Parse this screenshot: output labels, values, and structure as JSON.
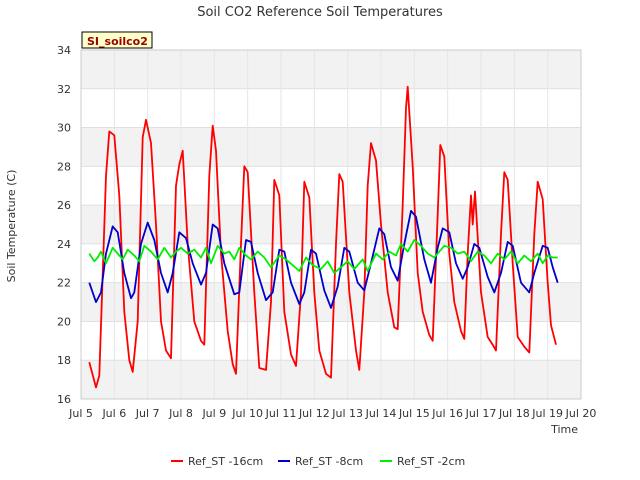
{
  "chart_data": {
    "type": "line",
    "title": "Soil CO2 Reference Soil Temperatures",
    "xlabel": "Time",
    "ylabel": "Soil Temperature (C)",
    "badge": "SI_soilco2",
    "xlim": [
      5,
      20
    ],
    "ylim": [
      16,
      34
    ],
    "x_ticks": [
      5,
      6,
      7,
      8,
      9,
      10,
      11,
      12,
      13,
      14,
      15,
      16,
      17,
      18,
      19,
      20
    ],
    "x_tick_labels": [
      "Jul 5",
      "Jul 6",
      "Jul 7",
      "Jul 8",
      "Jul 9",
      "Jul 10",
      "Jul 11",
      "Jul 12",
      "Jul 13",
      "Jul 14",
      "Jul 15",
      "Jul 16",
      "Jul 17",
      "Jul 18",
      "Jul 19",
      "Jul 20"
    ],
    "y_ticks": [
      16,
      18,
      20,
      22,
      24,
      26,
      28,
      30,
      32,
      34
    ],
    "y_tick_labels": [
      "16",
      "18",
      "20",
      "22",
      "24",
      "26",
      "28",
      "30",
      "32",
      "34"
    ],
    "grid": true,
    "legend_position": "bottom",
    "series": [
      {
        "name": "Ref_ST -16cm",
        "color": "#ff0000",
        "points": [
          [
            5.25,
            17.9
          ],
          [
            5.45,
            16.6
          ],
          [
            5.55,
            17.2
          ],
          [
            5.75,
            27.5
          ],
          [
            5.85,
            29.8
          ],
          [
            6.0,
            29.6
          ],
          [
            6.15,
            26.5
          ],
          [
            6.3,
            20.5
          ],
          [
            6.45,
            18.0
          ],
          [
            6.55,
            17.4
          ],
          [
            6.7,
            20.0
          ],
          [
            6.85,
            29.5
          ],
          [
            6.95,
            30.4
          ],
          [
            7.1,
            29.2
          ],
          [
            7.25,
            25.0
          ],
          [
            7.4,
            20.0
          ],
          [
            7.55,
            18.5
          ],
          [
            7.7,
            18.1
          ],
          [
            7.85,
            27.0
          ],
          [
            7.95,
            28.1
          ],
          [
            8.05,
            28.8
          ],
          [
            8.2,
            24.0
          ],
          [
            8.4,
            20.0
          ],
          [
            8.6,
            19.0
          ],
          [
            8.7,
            18.8
          ],
          [
            8.85,
            27.5
          ],
          [
            8.95,
            30.1
          ],
          [
            9.05,
            28.8
          ],
          [
            9.2,
            23.5
          ],
          [
            9.4,
            19.5
          ],
          [
            9.55,
            17.8
          ],
          [
            9.65,
            17.3
          ],
          [
            9.8,
            24.0
          ],
          [
            9.9,
            28.0
          ],
          [
            10.0,
            27.7
          ],
          [
            10.2,
            21.5
          ],
          [
            10.35,
            17.6
          ],
          [
            10.55,
            17.5
          ],
          [
            10.7,
            21.0
          ],
          [
            10.8,
            27.3
          ],
          [
            10.95,
            26.5
          ],
          [
            11.1,
            20.5
          ],
          [
            11.3,
            18.3
          ],
          [
            11.45,
            17.7
          ],
          [
            11.6,
            21.5
          ],
          [
            11.7,
            27.2
          ],
          [
            11.85,
            26.4
          ],
          [
            12.0,
            21.5
          ],
          [
            12.15,
            18.5
          ],
          [
            12.35,
            17.3
          ],
          [
            12.5,
            17.1
          ],
          [
            12.65,
            24.0
          ],
          [
            12.75,
            27.6
          ],
          [
            12.85,
            27.2
          ],
          [
            13.05,
            21.5
          ],
          [
            13.25,
            18.5
          ],
          [
            13.35,
            17.5
          ],
          [
            13.5,
            21.5
          ],
          [
            13.6,
            27.0
          ],
          [
            13.7,
            29.2
          ],
          [
            13.85,
            28.3
          ],
          [
            14.0,
            25.0
          ],
          [
            14.2,
            21.5
          ],
          [
            14.4,
            19.7
          ],
          [
            14.5,
            19.6
          ],
          [
            14.65,
            26.0
          ],
          [
            14.75,
            31.0
          ],
          [
            14.8,
            32.1
          ],
          [
            14.95,
            28.0
          ],
          [
            15.1,
            22.5
          ],
          [
            15.25,
            20.5
          ],
          [
            15.45,
            19.3
          ],
          [
            15.55,
            19.0
          ],
          [
            15.7,
            25.5
          ],
          [
            15.78,
            29.1
          ],
          [
            15.9,
            28.5
          ],
          [
            16.05,
            23.5
          ],
          [
            16.2,
            21.0
          ],
          [
            16.4,
            19.5
          ],
          [
            16.5,
            19.1
          ],
          [
            16.6,
            23.5
          ],
          [
            16.7,
            26.5
          ],
          [
            16.75,
            25.0
          ],
          [
            16.82,
            26.7
          ],
          [
            17.0,
            21.5
          ],
          [
            17.2,
            19.2
          ],
          [
            17.35,
            18.8
          ],
          [
            17.45,
            18.5
          ],
          [
            17.6,
            24.5
          ],
          [
            17.7,
            27.7
          ],
          [
            17.8,
            27.3
          ],
          [
            17.95,
            23.0
          ],
          [
            18.1,
            19.2
          ],
          [
            18.3,
            18.7
          ],
          [
            18.45,
            18.4
          ],
          [
            18.6,
            24.5
          ],
          [
            18.7,
            27.2
          ],
          [
            18.85,
            26.3
          ],
          [
            19.0,
            22.0
          ],
          [
            19.1,
            19.8
          ],
          [
            19.25,
            18.8
          ]
        ]
      },
      {
        "name": "Ref_ST -8cm",
        "color": "#0000cc",
        "points": [
          [
            5.25,
            22.0
          ],
          [
            5.45,
            21.0
          ],
          [
            5.6,
            21.5
          ],
          [
            5.75,
            23.5
          ],
          [
            5.95,
            24.9
          ],
          [
            6.1,
            24.6
          ],
          [
            6.3,
            22.5
          ],
          [
            6.5,
            21.2
          ],
          [
            6.6,
            21.5
          ],
          [
            6.8,
            24.0
          ],
          [
            7.0,
            25.1
          ],
          [
            7.2,
            24.2
          ],
          [
            7.4,
            22.5
          ],
          [
            7.6,
            21.5
          ],
          [
            7.75,
            22.5
          ],
          [
            7.95,
            24.6
          ],
          [
            8.15,
            24.3
          ],
          [
            8.35,
            23.0
          ],
          [
            8.6,
            21.9
          ],
          [
            8.75,
            22.5
          ],
          [
            8.95,
            25.0
          ],
          [
            9.1,
            24.8
          ],
          [
            9.3,
            23.0
          ],
          [
            9.6,
            21.4
          ],
          [
            9.75,
            21.5
          ],
          [
            9.95,
            24.2
          ],
          [
            10.1,
            24.1
          ],
          [
            10.3,
            22.5
          ],
          [
            10.55,
            21.1
          ],
          [
            10.75,
            21.5
          ],
          [
            10.95,
            23.7
          ],
          [
            11.1,
            23.6
          ],
          [
            11.3,
            22.0
          ],
          [
            11.55,
            20.9
          ],
          [
            11.7,
            21.5
          ],
          [
            11.9,
            23.7
          ],
          [
            12.05,
            23.5
          ],
          [
            12.3,
            21.6
          ],
          [
            12.5,
            20.7
          ],
          [
            12.7,
            21.8
          ],
          [
            12.9,
            23.8
          ],
          [
            13.05,
            23.6
          ],
          [
            13.3,
            22.0
          ],
          [
            13.5,
            21.6
          ],
          [
            13.7,
            23.0
          ],
          [
            13.95,
            24.8
          ],
          [
            14.1,
            24.5
          ],
          [
            14.3,
            22.8
          ],
          [
            14.5,
            22.1
          ],
          [
            14.7,
            24.0
          ],
          [
            14.9,
            25.7
          ],
          [
            15.05,
            25.4
          ],
          [
            15.3,
            23.2
          ],
          [
            15.5,
            22.0
          ],
          [
            15.7,
            23.8
          ],
          [
            15.85,
            24.8
          ],
          [
            16.05,
            24.6
          ],
          [
            16.25,
            23.0
          ],
          [
            16.45,
            22.2
          ],
          [
            16.6,
            22.8
          ],
          [
            16.8,
            24.0
          ],
          [
            16.95,
            23.8
          ],
          [
            17.2,
            22.3
          ],
          [
            17.4,
            21.5
          ],
          [
            17.6,
            22.5
          ],
          [
            17.8,
            24.1
          ],
          [
            17.95,
            23.9
          ],
          [
            18.2,
            22.0
          ],
          [
            18.45,
            21.5
          ],
          [
            18.6,
            22.5
          ],
          [
            18.85,
            23.9
          ],
          [
            19.0,
            23.8
          ],
          [
            19.15,
            22.8
          ],
          [
            19.3,
            22.0
          ]
        ]
      },
      {
        "name": "Ref_ST -2cm",
        "color": "#00ee00",
        "points": [
          [
            5.25,
            23.5
          ],
          [
            5.4,
            23.1
          ],
          [
            5.5,
            23.3
          ],
          [
            5.6,
            23.6
          ],
          [
            5.75,
            23.0
          ],
          [
            5.95,
            23.8
          ],
          [
            6.1,
            23.5
          ],
          [
            6.25,
            23.2
          ],
          [
            6.4,
            23.7
          ],
          [
            6.6,
            23.4
          ],
          [
            6.75,
            23.1
          ],
          [
            6.9,
            23.9
          ],
          [
            7.1,
            23.6
          ],
          [
            7.3,
            23.2
          ],
          [
            7.5,
            23.8
          ],
          [
            7.7,
            23.3
          ],
          [
            7.85,
            23.6
          ],
          [
            8.0,
            23.8
          ],
          [
            8.2,
            23.5
          ],
          [
            8.4,
            23.7
          ],
          [
            8.6,
            23.3
          ],
          [
            8.75,
            23.8
          ],
          [
            8.9,
            23.0
          ],
          [
            9.1,
            23.9
          ],
          [
            9.3,
            23.5
          ],
          [
            9.45,
            23.6
          ],
          [
            9.6,
            23.2
          ],
          [
            9.75,
            23.8
          ],
          [
            9.95,
            23.4
          ],
          [
            10.1,
            23.2
          ],
          [
            10.3,
            23.6
          ],
          [
            10.5,
            23.3
          ],
          [
            10.7,
            22.8
          ],
          [
            10.95,
            23.4
          ],
          [
            11.15,
            23.2
          ],
          [
            11.35,
            22.9
          ],
          [
            11.55,
            22.6
          ],
          [
            11.75,
            23.3
          ],
          [
            11.95,
            22.9
          ],
          [
            12.2,
            22.7
          ],
          [
            12.4,
            23.1
          ],
          [
            12.6,
            22.5
          ],
          [
            12.8,
            22.8
          ],
          [
            13.0,
            23.1
          ],
          [
            13.2,
            22.7
          ],
          [
            13.45,
            23.2
          ],
          [
            13.6,
            22.6
          ],
          [
            13.85,
            23.5
          ],
          [
            14.05,
            23.2
          ],
          [
            14.25,
            23.6
          ],
          [
            14.45,
            23.4
          ],
          [
            14.6,
            24.0
          ],
          [
            14.8,
            23.6
          ],
          [
            15.0,
            24.2
          ],
          [
            15.2,
            23.9
          ],
          [
            15.4,
            23.5
          ],
          [
            15.6,
            23.3
          ],
          [
            15.75,
            23.6
          ],
          [
            15.9,
            23.9
          ],
          [
            16.1,
            23.8
          ],
          [
            16.3,
            23.5
          ],
          [
            16.5,
            23.6
          ],
          [
            16.7,
            23.1
          ],
          [
            16.9,
            23.6
          ],
          [
            17.1,
            23.4
          ],
          [
            17.3,
            23.0
          ],
          [
            17.5,
            23.5
          ],
          [
            17.7,
            23.2
          ],
          [
            17.9,
            23.6
          ],
          [
            18.1,
            23.0
          ],
          [
            18.3,
            23.4
          ],
          [
            18.5,
            23.1
          ],
          [
            18.7,
            23.5
          ],
          [
            18.85,
            23.0
          ],
          [
            19.0,
            23.4
          ],
          [
            19.15,
            23.3
          ],
          [
            19.3,
            23.3
          ]
        ]
      }
    ]
  }
}
